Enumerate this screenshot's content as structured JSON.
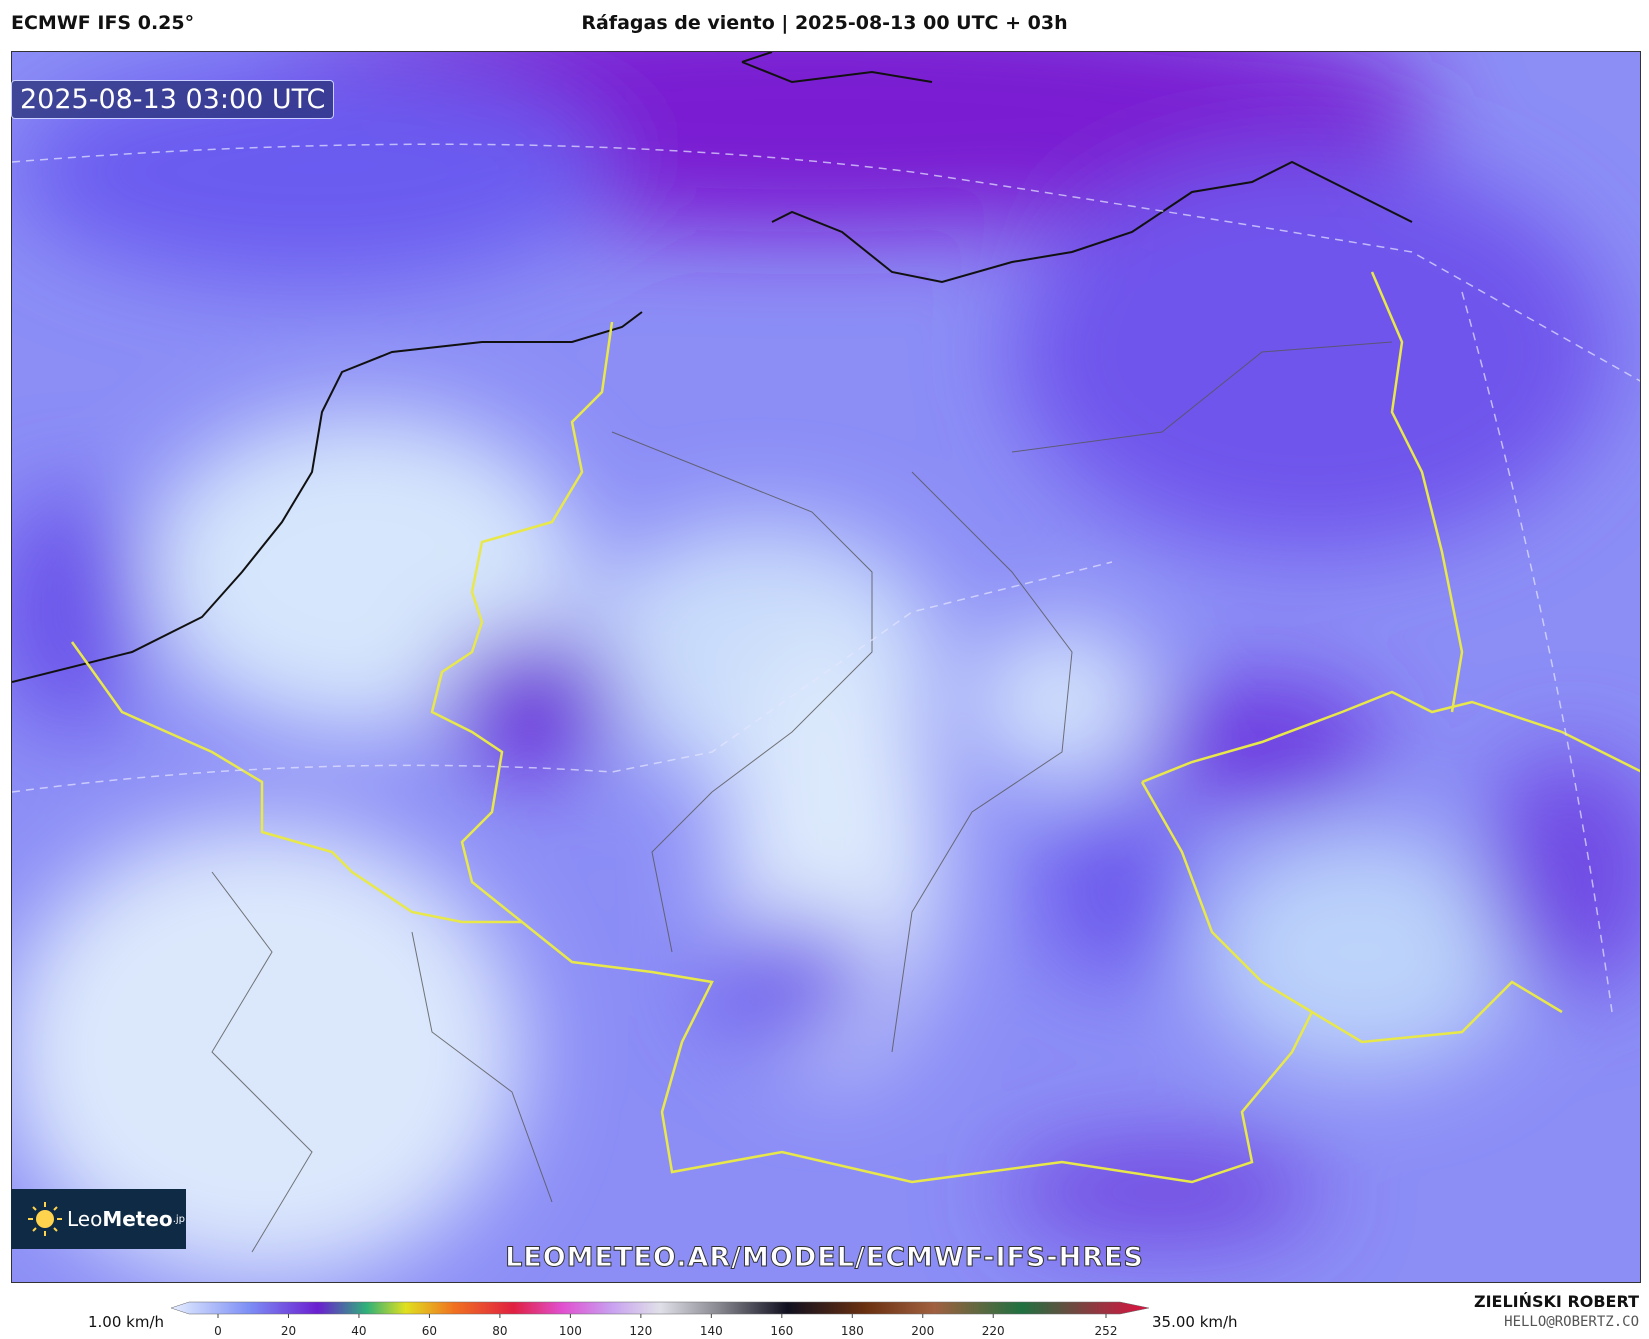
{
  "header": {
    "model": "ECMWF IFS 0.25°",
    "title": "Ráfagas de viento | 2025-08-13 00 UTC + 03h"
  },
  "map": {
    "timestamp": "2025-08-13 03:00 UTC",
    "logo": {
      "name": "Leo",
      "name_bold": "Meteo",
      "suffix": ".jp"
    },
    "watermark": "LEOMETEO.AR/MODEL/ECMWF-IFS-HRES"
  },
  "colorbar": {
    "min_label": "1.00 km/h",
    "max_label": "35.00 km/h",
    "ticks": [
      0,
      20,
      40,
      60,
      80,
      100,
      120,
      140,
      160,
      180,
      200,
      220,
      252
    ]
  },
  "credits": {
    "author": "ZIELIŃSKI ROBERT",
    "contact": "HELLO@ROBERTZ.CO"
  }
}
